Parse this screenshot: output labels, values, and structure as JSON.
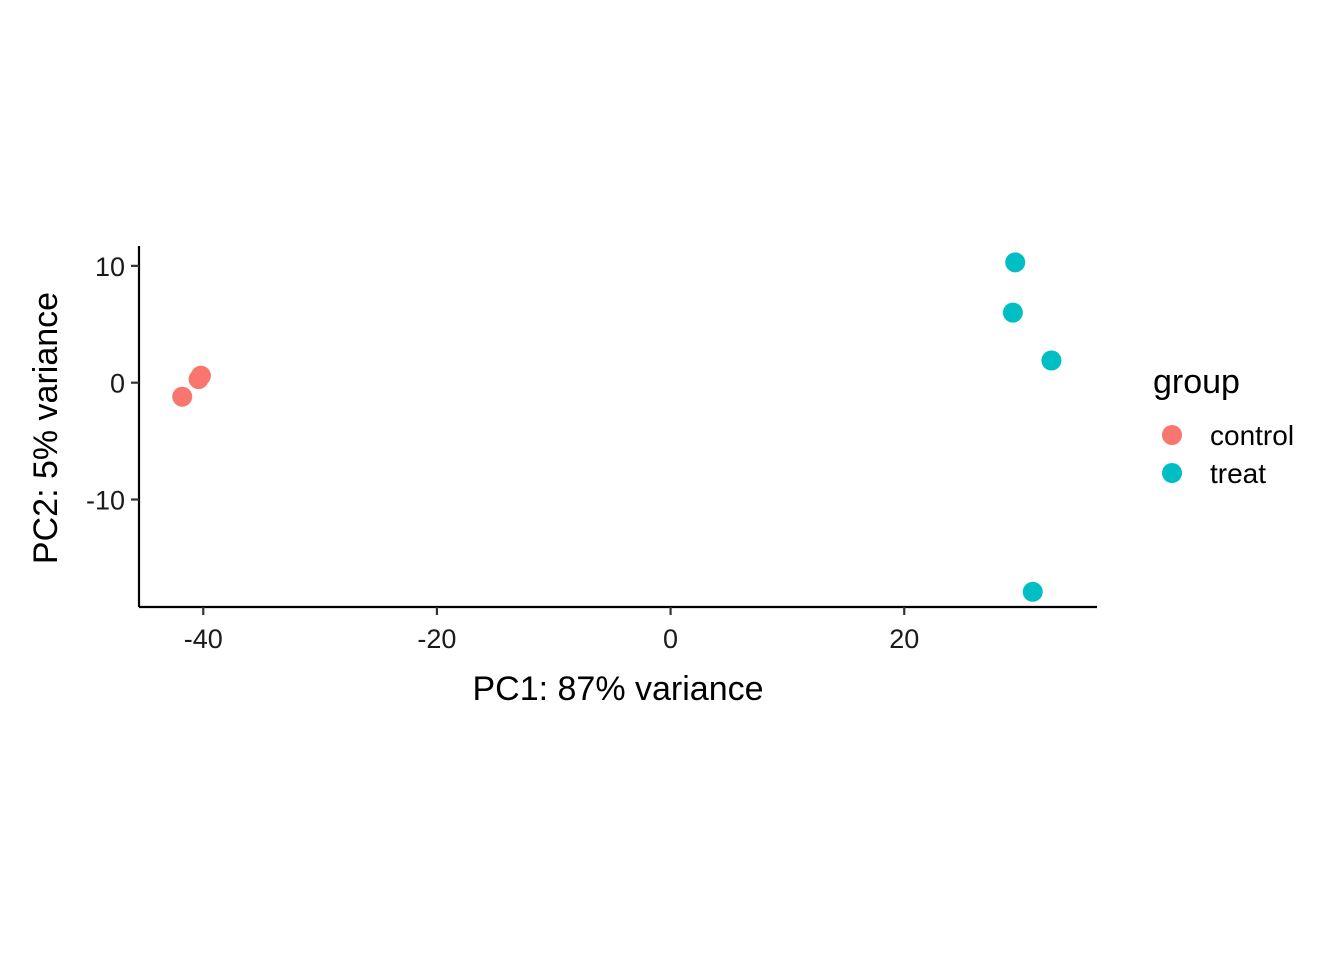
{
  "chart_data": {
    "type": "scatter",
    "xlabel": "PC1: 87% variance",
    "ylabel": "PC2: 5% variance",
    "xlim": [
      -45.5,
      36.5
    ],
    "ylim": [
      -19.2,
      11.7
    ],
    "x_ticks": [
      -40,
      -20,
      0,
      20
    ],
    "y_ticks": [
      10,
      0,
      -10
    ],
    "grid": false,
    "legend_position": "right",
    "legend_title": "group",
    "series": [
      {
        "name": "control",
        "color": "#F8766D",
        "points": [
          {
            "x": -41.8,
            "y": -1.2
          },
          {
            "x": -40.4,
            "y": 0.3
          },
          {
            "x": -40.2,
            "y": 0.6
          }
        ]
      },
      {
        "name": "treat",
        "color": "#00BFC4",
        "points": [
          {
            "x": 29.5,
            "y": 10.3
          },
          {
            "x": 29.3,
            "y": 6.0
          },
          {
            "x": 32.6,
            "y": 1.9
          },
          {
            "x": 31.0,
            "y": -17.9
          }
        ]
      }
    ]
  }
}
